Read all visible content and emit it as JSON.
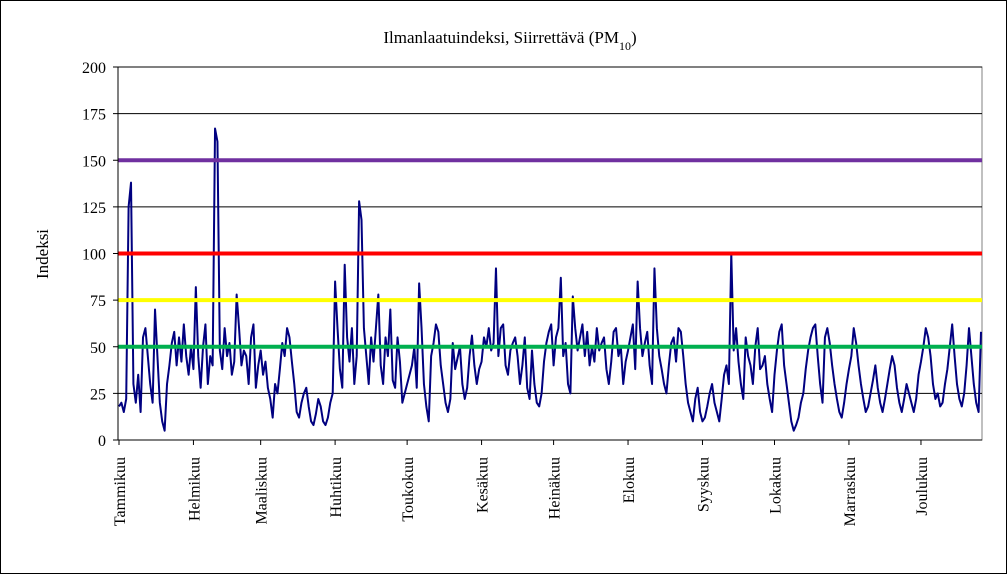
{
  "chart_data": {
    "type": "line",
    "title": "Ilmanlaatuindeksi, Siirrettävä (PM",
    "title_subscript": "10",
    "title_suffix": ")",
    "ylabel": "Indeksi",
    "xlabel": "",
    "ylim": [
      0,
      200
    ],
    "yticks": [
      0,
      25,
      50,
      75,
      100,
      125,
      150,
      175,
      200
    ],
    "grid": true,
    "legend": "none",
    "months": [
      "Tammikuu",
      "Helmikuu",
      "Maaliskuu",
      "Huhtikuu",
      "Toukokuu",
      "Kesäkuu",
      "Heinäkuu",
      "Elokuu",
      "Syyskuu",
      "Lokakuu",
      "Marraskuu",
      "Joulukuu"
    ],
    "reference_lines": [
      {
        "value": 150,
        "color": "#7030a0"
      },
      {
        "value": 100,
        "color": "#ff0000"
      },
      {
        "value": 75,
        "color": "#ffff00"
      },
      {
        "value": 50,
        "color": "#00b050"
      }
    ],
    "series": [
      {
        "color": "#000080",
        "values_per_day": [
          18,
          20,
          15,
          22,
          125,
          138,
          30,
          20,
          35,
          15,
          55,
          60,
          45,
          30,
          20,
          70,
          45,
          20,
          10,
          5,
          30,
          40,
          52,
          58,
          40,
          55,
          42,
          62,
          45,
          35,
          50,
          38,
          82,
          45,
          28,
          50,
          62,
          30,
          45,
          40,
          167,
          160,
          48,
          38,
          60,
          45,
          52,
          35,
          42,
          78,
          60,
          40,
          48,
          45,
          30,
          55,
          62,
          28,
          40,
          48,
          35,
          42,
          28,
          22,
          12,
          30,
          25,
          38,
          52,
          45,
          60,
          55,
          42,
          30,
          15,
          12,
          20,
          25,
          28,
          18,
          10,
          8,
          14,
          22,
          18,
          10,
          8,
          12,
          20,
          25,
          85,
          60,
          38,
          28,
          94,
          55,
          42,
          60,
          30,
          45,
          128,
          118,
          60,
          45,
          30,
          55,
          42,
          60,
          78,
          40,
          30,
          55,
          45,
          70,
          32,
          28,
          55,
          42,
          20,
          25,
          30,
          35,
          40,
          50,
          28,
          84,
          60,
          30,
          18,
          10,
          45,
          52,
          62,
          58,
          40,
          30,
          20,
          15,
          22,
          52,
          38,
          44,
          50,
          30,
          22,
          28,
          45,
          56,
          40,
          30,
          38,
          42,
          55,
          50,
          60,
          48,
          52,
          92,
          45,
          60,
          62,
          40,
          35,
          48,
          52,
          55,
          45,
          30,
          40,
          55,
          28,
          22,
          48,
          30,
          20,
          18,
          25,
          42,
          52,
          58,
          62,
          40,
          55,
          60,
          87,
          45,
          52,
          30,
          25,
          77,
          60,
          48,
          55,
          62,
          45,
          58,
          40,
          50,
          42,
          60,
          48,
          52,
          55,
          38,
          30,
          42,
          58,
          60,
          45,
          50,
          30,
          42,
          48,
          55,
          62,
          38,
          85,
          60,
          45,
          52,
          58,
          40,
          30,
          92,
          60,
          45,
          38,
          30,
          25,
          40,
          52,
          55,
          42,
          60,
          58,
          45,
          30,
          20,
          15,
          10,
          22,
          28,
          15,
          10,
          12,
          18,
          25,
          30,
          20,
          15,
          10,
          22,
          35,
          40,
          30,
          100,
          48,
          60,
          42,
          30,
          22,
          55,
          45,
          40,
          30,
          50,
          60,
          38,
          40,
          45,
          30,
          22,
          15,
          35,
          48,
          58,
          62,
          40,
          30,
          20,
          10,
          5,
          8,
          12,
          20,
          25,
          38,
          48,
          55,
          60,
          62,
          45,
          30,
          20,
          55,
          60,
          52,
          40,
          30,
          22,
          15,
          12,
          20,
          30,
          38,
          45,
          60,
          52,
          40,
          30,
          22,
          15,
          18,
          25,
          32,
          40,
          28,
          20,
          15,
          22,
          30,
          38,
          45,
          40,
          28,
          20,
          15,
          22,
          30,
          25,
          20,
          15,
          22,
          35,
          42,
          50,
          60,
          55,
          45,
          30,
          22,
          25,
          18,
          20,
          30,
          38,
          50,
          62,
          45,
          30,
          22,
          18,
          25,
          40,
          60,
          45,
          30,
          20,
          15,
          58
        ]
      }
    ]
  }
}
